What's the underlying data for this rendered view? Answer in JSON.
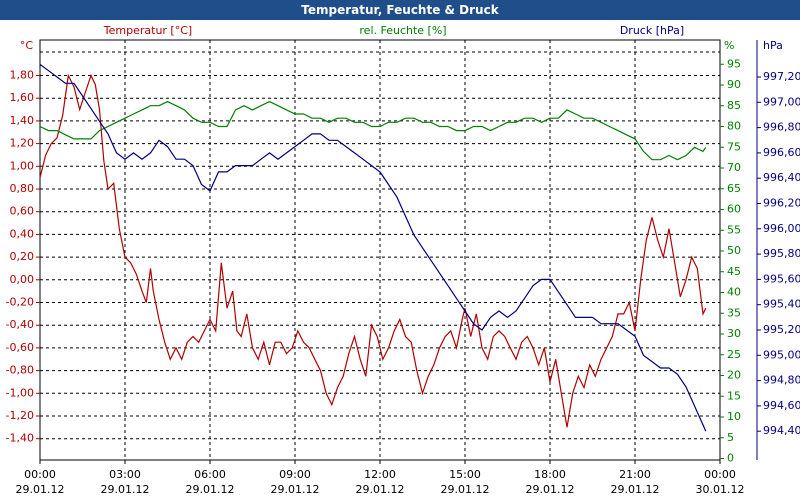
{
  "chart_data": {
    "type": "line",
    "title": "Temperatur, Feuchte & Druck",
    "x_ticks": [
      {
        "time": "00:00",
        "date": "29.01.12"
      },
      {
        "time": "03:00",
        "date": "29.01.12"
      },
      {
        "time": "06:00",
        "date": "29.01.12"
      },
      {
        "time": "09:00",
        "date": "29.01.12"
      },
      {
        "time": "12:00",
        "date": "29.01.12"
      },
      {
        "time": "15:00",
        "date": "29.01.12"
      },
      {
        "time": "18:00",
        "date": "29.01.12"
      },
      {
        "time": "21:00",
        "date": "29.01.12"
      },
      {
        "time": "00:00",
        "date": "30.01.12"
      }
    ],
    "x_range_hours": [
      0,
      24
    ],
    "grid": true,
    "axes": {
      "temperature": {
        "label": "Temperatur [°C]",
        "unit": "°C",
        "color": "#b00000",
        "range": [
          -1.4,
          2.0
        ],
        "ticks": [
          "1,80",
          "1,60",
          "1,40",
          "1,20",
          "1,00",
          "0,80",
          "0,60",
          "0,40",
          "0,20",
          "0,00",
          "-0,20",
          "-0,40",
          "-0,60",
          "-0,80",
          "-1,00",
          "-1,20",
          "-1,40"
        ]
      },
      "humidity": {
        "label": "rel. Feuchte [%]",
        "unit": "%",
        "color": "#008000",
        "range": [
          0,
          100
        ],
        "ticks": [
          "95",
          "90",
          "85",
          "80",
          "75",
          "70",
          "65",
          "60",
          "55",
          "50",
          "45",
          "40",
          "35",
          "30",
          "25",
          "20",
          "15",
          "10",
          "5",
          "0"
        ]
      },
      "pressure": {
        "label": "Druck [hPa]",
        "unit": "hPa",
        "color": "#000080",
        "range": [
          994.25,
          997.35
        ],
        "ticks": [
          "997,20",
          "997,00",
          "996,80",
          "996,60",
          "996,40",
          "996,20",
          "996,00",
          "995,80",
          "995,60",
          "995,40",
          "995,20",
          "995,00",
          "994,80",
          "994,60",
          "994,40"
        ]
      }
    },
    "series": [
      {
        "name": "Temperatur [°C]",
        "axis": "temperature",
        "color": "#b00000",
        "points": [
          [
            0,
            0.9
          ],
          [
            0.2,
            1.1
          ],
          [
            0.4,
            1.2
          ],
          [
            0.6,
            1.25
          ],
          [
            0.8,
            1.45
          ],
          [
            1.0,
            1.8
          ],
          [
            1.2,
            1.7
          ],
          [
            1.4,
            1.5
          ],
          [
            1.6,
            1.65
          ],
          [
            1.8,
            1.8
          ],
          [
            1.95,
            1.72
          ],
          [
            2.1,
            1.5
          ],
          [
            2.25,
            1.05
          ],
          [
            2.4,
            0.8
          ],
          [
            2.6,
            0.85
          ],
          [
            2.8,
            0.45
          ],
          [
            3.0,
            0.2
          ],
          [
            3.2,
            0.15
          ],
          [
            3.4,
            0.05
          ],
          [
            3.6,
            -0.1
          ],
          [
            3.75,
            -0.2
          ],
          [
            3.9,
            0.1
          ],
          [
            4.0,
            -0.1
          ],
          [
            4.2,
            -0.35
          ],
          [
            4.4,
            -0.55
          ],
          [
            4.6,
            -0.7
          ],
          [
            4.8,
            -0.6
          ],
          [
            5.0,
            -0.7
          ],
          [
            5.2,
            -0.55
          ],
          [
            5.4,
            -0.5
          ],
          [
            5.6,
            -0.55
          ],
          [
            5.8,
            -0.45
          ],
          [
            6.0,
            -0.35
          ],
          [
            6.2,
            -0.45
          ],
          [
            6.4,
            0.15
          ],
          [
            6.6,
            -0.25
          ],
          [
            6.8,
            -0.1
          ],
          [
            6.95,
            -0.45
          ],
          [
            7.1,
            -0.5
          ],
          [
            7.3,
            -0.3
          ],
          [
            7.5,
            -0.6
          ],
          [
            7.7,
            -0.7
          ],
          [
            7.9,
            -0.55
          ],
          [
            8.1,
            -0.75
          ],
          [
            8.3,
            -0.55
          ],
          [
            8.5,
            -0.55
          ],
          [
            8.7,
            -0.65
          ],
          [
            8.9,
            -0.6
          ],
          [
            9.1,
            -0.45
          ],
          [
            9.3,
            -0.55
          ],
          [
            9.5,
            -0.6
          ],
          [
            9.7,
            -0.7
          ],
          [
            9.9,
            -0.8
          ],
          [
            10.1,
            -1.0
          ],
          [
            10.3,
            -1.1
          ],
          [
            10.5,
            -0.95
          ],
          [
            10.7,
            -0.85
          ],
          [
            10.9,
            -0.65
          ],
          [
            11.1,
            -0.5
          ],
          [
            11.3,
            -0.7
          ],
          [
            11.5,
            -0.85
          ],
          [
            11.7,
            -0.4
          ],
          [
            11.9,
            -0.5
          ],
          [
            12.1,
            -0.7
          ],
          [
            12.3,
            -0.6
          ],
          [
            12.5,
            -0.45
          ],
          [
            12.7,
            -0.35
          ],
          [
            12.9,
            -0.5
          ],
          [
            13.1,
            -0.55
          ],
          [
            13.3,
            -0.8
          ],
          [
            13.5,
            -1.0
          ],
          [
            13.7,
            -0.85
          ],
          [
            13.9,
            -0.75
          ],
          [
            14.1,
            -0.6
          ],
          [
            14.3,
            -0.5
          ],
          [
            14.5,
            -0.45
          ],
          [
            14.7,
            -0.6
          ],
          [
            14.9,
            -0.35
          ],
          [
            15.0,
            -0.25
          ],
          [
            15.2,
            -0.5
          ],
          [
            15.4,
            -0.3
          ],
          [
            15.6,
            -0.6
          ],
          [
            15.8,
            -0.7
          ],
          [
            16.0,
            -0.5
          ],
          [
            16.2,
            -0.45
          ],
          [
            16.4,
            -0.5
          ],
          [
            16.6,
            -0.6
          ],
          [
            16.8,
            -0.7
          ],
          [
            17.0,
            -0.55
          ],
          [
            17.2,
            -0.5
          ],
          [
            17.4,
            -0.6
          ],
          [
            17.6,
            -0.75
          ],
          [
            17.8,
            -0.6
          ],
          [
            18.0,
            -0.9
          ],
          [
            18.2,
            -0.7
          ],
          [
            18.4,
            -1.0
          ],
          [
            18.6,
            -1.3
          ],
          [
            18.8,
            -1.0
          ],
          [
            19.0,
            -0.85
          ],
          [
            19.2,
            -0.95
          ],
          [
            19.4,
            -0.75
          ],
          [
            19.6,
            -0.85
          ],
          [
            19.8,
            -0.7
          ],
          [
            20.0,
            -0.6
          ],
          [
            20.2,
            -0.5
          ],
          [
            20.4,
            -0.3
          ],
          [
            20.6,
            -0.3
          ],
          [
            20.8,
            -0.2
          ],
          [
            21.0,
            -0.45
          ],
          [
            21.2,
            0.0
          ],
          [
            21.4,
            0.35
          ],
          [
            21.6,
            0.55
          ],
          [
            21.8,
            0.35
          ],
          [
            22.0,
            0.2
          ],
          [
            22.2,
            0.45
          ],
          [
            22.4,
            0.15
          ],
          [
            22.6,
            -0.15
          ],
          [
            22.8,
            0.0
          ],
          [
            23.0,
            0.2
          ],
          [
            23.2,
            0.1
          ],
          [
            23.4,
            -0.3
          ],
          [
            23.5,
            -0.25
          ]
        ]
      },
      {
        "name": "rel. Feuchte [%]",
        "axis": "humidity",
        "color": "#008000",
        "points": [
          [
            0,
            80
          ],
          [
            0.3,
            79
          ],
          [
            0.6,
            79
          ],
          [
            0.9,
            78
          ],
          [
            1.2,
            77
          ],
          [
            1.5,
            77
          ],
          [
            1.8,
            77
          ],
          [
            2.1,
            79
          ],
          [
            2.4,
            80
          ],
          [
            2.7,
            81
          ],
          [
            3.0,
            82
          ],
          [
            3.3,
            83
          ],
          [
            3.6,
            84
          ],
          [
            3.9,
            85
          ],
          [
            4.2,
            85
          ],
          [
            4.5,
            86
          ],
          [
            4.8,
            85
          ],
          [
            5.1,
            84
          ],
          [
            5.4,
            82
          ],
          [
            5.7,
            81
          ],
          [
            6.0,
            81
          ],
          [
            6.3,
            80
          ],
          [
            6.6,
            80
          ],
          [
            6.9,
            84
          ],
          [
            7.2,
            85
          ],
          [
            7.5,
            84
          ],
          [
            7.8,
            85
          ],
          [
            8.1,
            86
          ],
          [
            8.4,
            85
          ],
          [
            8.7,
            84
          ],
          [
            9.0,
            83
          ],
          [
            9.3,
            83
          ],
          [
            9.6,
            82
          ],
          [
            9.9,
            82
          ],
          [
            10.2,
            81
          ],
          [
            10.5,
            82
          ],
          [
            10.8,
            82
          ],
          [
            11.1,
            81
          ],
          [
            11.4,
            81
          ],
          [
            11.7,
            80
          ],
          [
            12.0,
            80
          ],
          [
            12.3,
            81
          ],
          [
            12.6,
            81
          ],
          [
            12.9,
            82
          ],
          [
            13.2,
            82
          ],
          [
            13.5,
            81
          ],
          [
            13.8,
            81
          ],
          [
            14.1,
            80
          ],
          [
            14.4,
            80
          ],
          [
            14.7,
            79
          ],
          [
            15.0,
            79
          ],
          [
            15.3,
            80
          ],
          [
            15.6,
            80
          ],
          [
            15.9,
            79
          ],
          [
            16.2,
            80
          ],
          [
            16.5,
            81
          ],
          [
            16.8,
            81
          ],
          [
            17.1,
            82
          ],
          [
            17.4,
            82
          ],
          [
            17.7,
            81
          ],
          [
            18.0,
            82
          ],
          [
            18.3,
            82
          ],
          [
            18.6,
            84
          ],
          [
            18.9,
            83
          ],
          [
            19.2,
            82
          ],
          [
            19.5,
            82
          ],
          [
            19.8,
            81
          ],
          [
            20.1,
            80
          ],
          [
            20.4,
            79
          ],
          [
            20.7,
            78
          ],
          [
            21.0,
            77
          ],
          [
            21.3,
            74
          ],
          [
            21.6,
            72
          ],
          [
            21.9,
            72
          ],
          [
            22.2,
            73
          ],
          [
            22.5,
            72
          ],
          [
            22.8,
            73
          ],
          [
            23.1,
            75
          ],
          [
            23.4,
            74
          ],
          [
            23.5,
            75
          ]
        ]
      },
      {
        "name": "Druck [hPa]",
        "axis": "pressure",
        "color": "#000080",
        "points": [
          [
            0,
            997.3
          ],
          [
            0.3,
            997.25
          ],
          [
            0.6,
            997.2
          ],
          [
            0.9,
            997.15
          ],
          [
            1.2,
            997.15
          ],
          [
            1.5,
            997.05
          ],
          [
            1.8,
            996.95
          ],
          [
            2.1,
            996.85
          ],
          [
            2.4,
            996.75
          ],
          [
            2.7,
            996.6
          ],
          [
            3.0,
            996.55
          ],
          [
            3.3,
            996.6
          ],
          [
            3.6,
            996.55
          ],
          [
            3.9,
            996.6
          ],
          [
            4.2,
            996.7
          ],
          [
            4.5,
            996.65
          ],
          [
            4.8,
            996.55
          ],
          [
            5.1,
            996.55
          ],
          [
            5.4,
            996.5
          ],
          [
            5.7,
            996.35
          ],
          [
            6.0,
            996.3
          ],
          [
            6.3,
            996.45
          ],
          [
            6.6,
            996.45
          ],
          [
            6.9,
            996.5
          ],
          [
            7.2,
            996.5
          ],
          [
            7.5,
            996.5
          ],
          [
            7.8,
            996.55
          ],
          [
            8.1,
            996.6
          ],
          [
            8.4,
            996.55
          ],
          [
            8.7,
            996.6
          ],
          [
            9.0,
            996.65
          ],
          [
            9.3,
            996.7
          ],
          [
            9.6,
            996.75
          ],
          [
            9.9,
            996.75
          ],
          [
            10.2,
            996.7
          ],
          [
            10.5,
            996.7
          ],
          [
            10.8,
            996.65
          ],
          [
            11.1,
            996.6
          ],
          [
            11.4,
            996.55
          ],
          [
            11.7,
            996.5
          ],
          [
            12.0,
            996.45
          ],
          [
            12.3,
            996.35
          ],
          [
            12.6,
            996.25
          ],
          [
            12.9,
            996.1
          ],
          [
            13.2,
            995.95
          ],
          [
            13.5,
            995.85
          ],
          [
            13.8,
            995.75
          ],
          [
            14.1,
            995.65
          ],
          [
            14.4,
            995.55
          ],
          [
            14.7,
            995.45
          ],
          [
            15.0,
            995.35
          ],
          [
            15.3,
            995.25
          ],
          [
            15.6,
            995.2
          ],
          [
            15.9,
            995.3
          ],
          [
            16.2,
            995.35
          ],
          [
            16.5,
            995.3
          ],
          [
            16.8,
            995.35
          ],
          [
            17.1,
            995.45
          ],
          [
            17.4,
            995.55
          ],
          [
            17.7,
            995.6
          ],
          [
            18.0,
            995.6
          ],
          [
            18.3,
            995.5
          ],
          [
            18.6,
            995.4
          ],
          [
            18.9,
            995.3
          ],
          [
            19.2,
            995.3
          ],
          [
            19.5,
            995.3
          ],
          [
            19.8,
            995.25
          ],
          [
            20.1,
            995.25
          ],
          [
            20.4,
            995.25
          ],
          [
            20.7,
            995.2
          ],
          [
            21.0,
            995.15
          ],
          [
            21.3,
            995.0
          ],
          [
            21.6,
            994.95
          ],
          [
            21.9,
            994.9
          ],
          [
            22.2,
            994.9
          ],
          [
            22.5,
            994.85
          ],
          [
            22.8,
            994.75
          ],
          [
            23.1,
            994.6
          ],
          [
            23.4,
            994.45
          ],
          [
            23.5,
            994.4
          ]
        ]
      }
    ]
  }
}
